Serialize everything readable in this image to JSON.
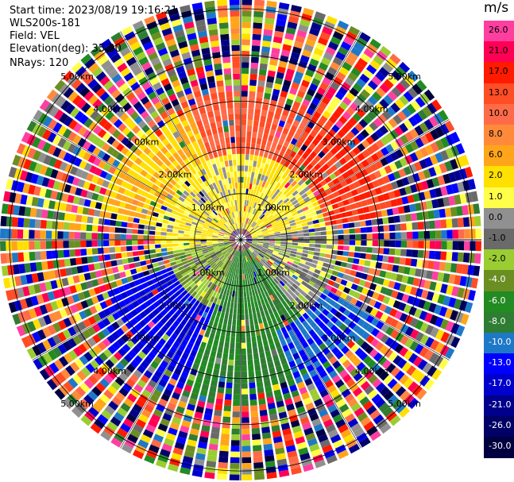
{
  "header": {
    "start_time": "Start time: 2023/08/19 19:16:21",
    "instrument": "WLS200s-181",
    "field": "Field: VEL",
    "elevation": "Elevation(deg): 35.30",
    "nrays": "NRays: 120"
  },
  "colorbar": {
    "unit": "m/s",
    "labels": [
      "26.0",
      "21.0",
      "17.0",
      "13.0",
      "10.0",
      "8.0",
      "6.0",
      "2.0",
      "1.0",
      "0.0",
      "-1.0",
      "-2.0",
      "-4.0",
      "-6.0",
      "-8.0",
      "-10.0",
      "-13.0",
      "-17.0",
      "-21.0",
      "-26.0",
      "-30.0"
    ],
    "colors": [
      "#ff3fa0",
      "#ff0055",
      "#ff1a00",
      "#ff4d26",
      "#ff6b48",
      "#ff8a3a",
      "#ffa51a",
      "#ffe000",
      "#ffff4a",
      "#909090",
      "#6a6a6a",
      "#9acd32",
      "#6b8e23",
      "#228b22",
      "#2e7d32",
      "#1e78c8",
      "#0000ff",
      "#0000cd",
      "#00008b",
      "#000066",
      "#000040"
    ]
  },
  "chart_data": {
    "type": "ppi",
    "field": "VEL",
    "units": "m/s",
    "elevation_deg": 35.3,
    "n_rays": 120,
    "range_rings_km": [
      1.0,
      2.0,
      3.0,
      4.0,
      5.0
    ],
    "ring_labels": [
      "1.00km",
      "2.00km",
      "3.00km",
      "4.00km",
      "5.00km"
    ],
    "max_range_km": 5.2,
    "colorbar_min": -30.0,
    "colorbar_max": 26.0,
    "sectors": [
      {
        "az_from": 315,
        "az_to": 45,
        "range_km": [
          1.0,
          3.2
        ],
        "velocity_ms": 13.0
      },
      {
        "az_from": 30,
        "az_to": 80,
        "range_km": [
          1.5,
          3.5
        ],
        "velocity_ms": 17.0
      },
      {
        "az_from": 280,
        "az_to": 340,
        "range_km": [
          1.0,
          3.0
        ],
        "velocity_ms": 6.0
      },
      {
        "az_from": 260,
        "az_to": 80,
        "range_km": [
          0.2,
          1.8
        ],
        "velocity_ms": 2.0
      },
      {
        "az_from": 80,
        "az_to": 140,
        "range_km": [
          0.2,
          2.0
        ],
        "velocity_ms": 0.0
      },
      {
        "az_from": 140,
        "az_to": 200,
        "range_km": [
          0.2,
          3.5
        ],
        "velocity_ms": -6.0
      },
      {
        "az_from": 200,
        "az_to": 260,
        "range_km": [
          0.2,
          1.5
        ],
        "velocity_ms": -2.0
      },
      {
        "az_from": 200,
        "az_to": 250,
        "range_km": [
          1.5,
          3.5
        ],
        "velocity_ms": -13.0
      },
      {
        "az_from": 120,
        "az_to": 160,
        "range_km": [
          2.0,
          3.5
        ],
        "velocity_ms": -10.0
      }
    ],
    "outer_region": {
      "range_km": [
        3.5,
        5.2
      ],
      "description_values": "noise"
    }
  }
}
